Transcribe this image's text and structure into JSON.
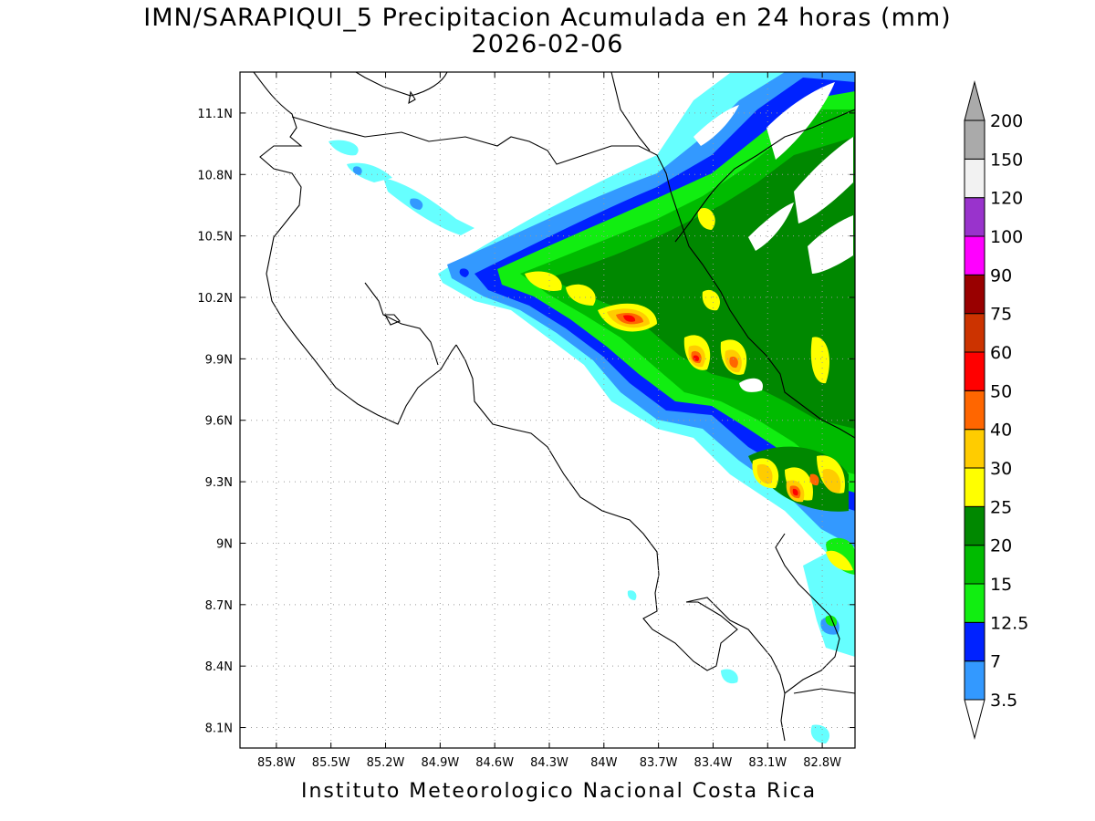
{
  "title": {
    "line1": "IMN/SARAPIQUI_5 Precipitacion Acumulada en 24 horas (mm)",
    "line2": "2026-02-06"
  },
  "footer": "Instituto Meteorologico Nacional Costa Rica",
  "map": {
    "lon_range": [
      -86.0,
      -82.62
    ],
    "lat_range": [
      8.0,
      11.3
    ],
    "x_ticks": [
      "85.8W",
      "85.5W",
      "85.2W",
      "84.9W",
      "84.6W",
      "84.3W",
      "84W",
      "83.7W",
      "83.4W",
      "83.1W",
      "82.8W"
    ],
    "y_ticks": [
      "11.1N",
      "10.8N",
      "10.5N",
      "10.2N",
      "9.9N",
      "9.6N",
      "9.3N",
      "9N",
      "8.7N",
      "8.4N",
      "8.1N"
    ]
  },
  "colorbar": {
    "labels": [
      "3.5",
      "7",
      "12.5",
      "15",
      "20",
      "25",
      "30",
      "40",
      "50",
      "60",
      "75",
      "90",
      "100",
      "120",
      "150",
      "200"
    ],
    "colors": [
      "#66ffff",
      "#3399ff",
      "#0022ff",
      "#11ee11",
      "#00bb00",
      "#008800",
      "#ffff00",
      "#ffcc00",
      "#ff6600",
      "#ff0000",
      "#cc3300",
      "#990000",
      "#ff00ff",
      "#9933cc",
      "#f2f2f2",
      "#aaaaaa"
    ]
  },
  "precip_colors": {
    "c1": "#66ffff",
    "c2": "#3399ff",
    "c3": "#0022ff",
    "c4": "#11ee11",
    "c5": "#00bb00",
    "c6": "#008800",
    "c7": "#ffff00",
    "c8": "#ffcc00",
    "c9": "#ff6600",
    "c10": "#ff0000"
  }
}
